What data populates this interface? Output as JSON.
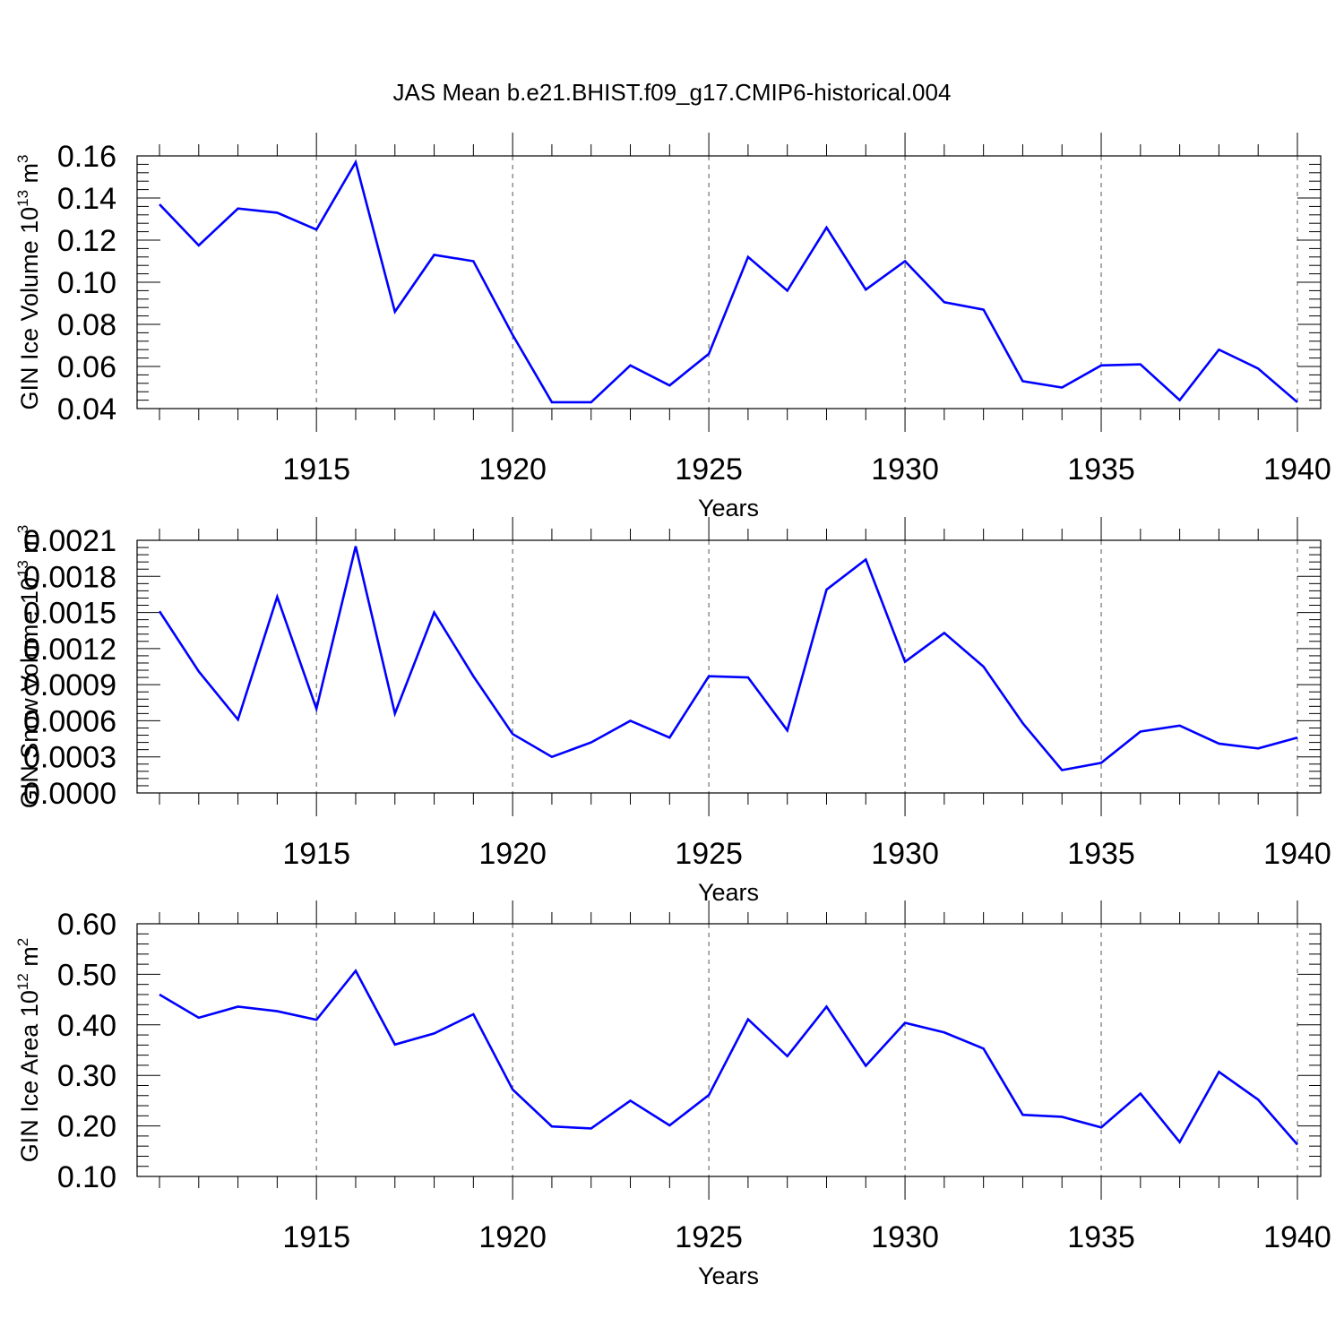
{
  "title": "JAS Mean b.e21.BHIST.f09_g17.CMIP6-historical.004",
  "line_color": "#0000ff",
  "chart_data": [
    {
      "type": "line",
      "ylabel": "GIN Ice Volume 10",
      "ylabel_exp": "13",
      "ylabel_unit": " m",
      "ylabel_unit_exp": "3",
      "xlabel": "Years",
      "xlim": [
        1911,
        1940
      ],
      "ylim": [
        0.04,
        0.16
      ],
      "yticks": [
        "0.04",
        "0.06",
        "0.08",
        "0.10",
        "0.12",
        "0.14",
        "0.16"
      ],
      "xticks": [
        "1915",
        "1920",
        "1925",
        "1930",
        "1935",
        "1940"
      ],
      "x": [
        1911,
        1912,
        1913,
        1914,
        1915,
        1916,
        1917,
        1918,
        1919,
        1920,
        1921,
        1922,
        1923,
        1924,
        1925,
        1926,
        1927,
        1928,
        1929,
        1930,
        1931,
        1932,
        1933,
        1934,
        1935,
        1936,
        1937,
        1938,
        1939,
        1940
      ],
      "series": [
        {
          "values": [
            0.137,
            0.1175,
            0.135,
            0.133,
            0.125,
            0.157,
            0.086,
            0.113,
            0.11,
            0.075,
            0.043,
            0.043,
            0.0605,
            0.051,
            0.066,
            0.112,
            0.096,
            0.126,
            0.0965,
            0.11,
            0.0905,
            0.087,
            0.053,
            0.05,
            0.0605,
            0.061,
            0.044,
            0.068,
            0.059,
            0.043
          ]
        }
      ],
      "grid": "vertical dashed at labeled years"
    },
    {
      "type": "line",
      "ylabel": "GIN Snow Volume 10",
      "ylabel_exp": "13",
      "ylabel_unit": " m",
      "ylabel_unit_exp": "3",
      "xlabel": "Years",
      "xlim": [
        1911,
        1940
      ],
      "ylim": [
        0.0,
        0.0021
      ],
      "yticks": [
        "0.0000",
        "0.0003",
        "0.0006",
        "0.0009",
        "0.0012",
        "0.0015",
        "0.0018",
        "0.0021"
      ],
      "xticks": [
        "1915",
        "1920",
        "1925",
        "1930",
        "1935",
        "1940"
      ],
      "x": [
        1911,
        1912,
        1913,
        1914,
        1915,
        1916,
        1917,
        1918,
        1919,
        1920,
        1921,
        1922,
        1923,
        1924,
        1925,
        1926,
        1927,
        1928,
        1929,
        1930,
        1931,
        1932,
        1933,
        1934,
        1935,
        1936,
        1937,
        1938,
        1939,
        1940
      ],
      "series": [
        {
          "values": [
            0.00151,
            0.00101,
            0.00061,
            0.00163,
            0.0007,
            0.00205,
            0.00066,
            0.0015,
            0.00097,
            0.00049,
            0.0003,
            0.00042,
            0.0006,
            0.00046,
            0.00097,
            0.00096,
            0.00052,
            0.00169,
            0.00194,
            0.00109,
            0.00133,
            0.00105,
            0.00058,
            0.00019,
            0.00025,
            0.00051,
            0.00056,
            0.00041,
            0.00037,
            0.00046
          ]
        }
      ],
      "grid": "vertical dashed at labeled years"
    },
    {
      "type": "line",
      "ylabel": "GIN Ice Area 10",
      "ylabel_exp": "12",
      "ylabel_unit": " m",
      "ylabel_unit_exp": "2",
      "xlabel": "Years",
      "xlim": [
        1911,
        1940
      ],
      "ylim": [
        0.1,
        0.6
      ],
      "yticks": [
        "0.10",
        "0.20",
        "0.30",
        "0.40",
        "0.50",
        "0.60"
      ],
      "xticks": [
        "1915",
        "1920",
        "1925",
        "1930",
        "1935",
        "1940"
      ],
      "x": [
        1911,
        1912,
        1913,
        1914,
        1915,
        1916,
        1917,
        1918,
        1919,
        1920,
        1921,
        1922,
        1923,
        1924,
        1925,
        1926,
        1927,
        1928,
        1929,
        1930,
        1931,
        1932,
        1933,
        1934,
        1935,
        1936,
        1937,
        1938,
        1939,
        1940
      ],
      "series": [
        {
          "values": [
            0.46,
            0.414,
            0.436,
            0.427,
            0.41,
            0.507,
            0.361,
            0.383,
            0.421,
            0.272,
            0.199,
            0.195,
            0.25,
            0.201,
            0.261,
            0.411,
            0.338,
            0.436,
            0.319,
            0.404,
            0.385,
            0.353,
            0.222,
            0.218,
            0.197,
            0.264,
            0.168,
            0.307,
            0.252,
            0.163
          ]
        }
      ],
      "grid": "vertical dashed at labeled years"
    }
  ]
}
